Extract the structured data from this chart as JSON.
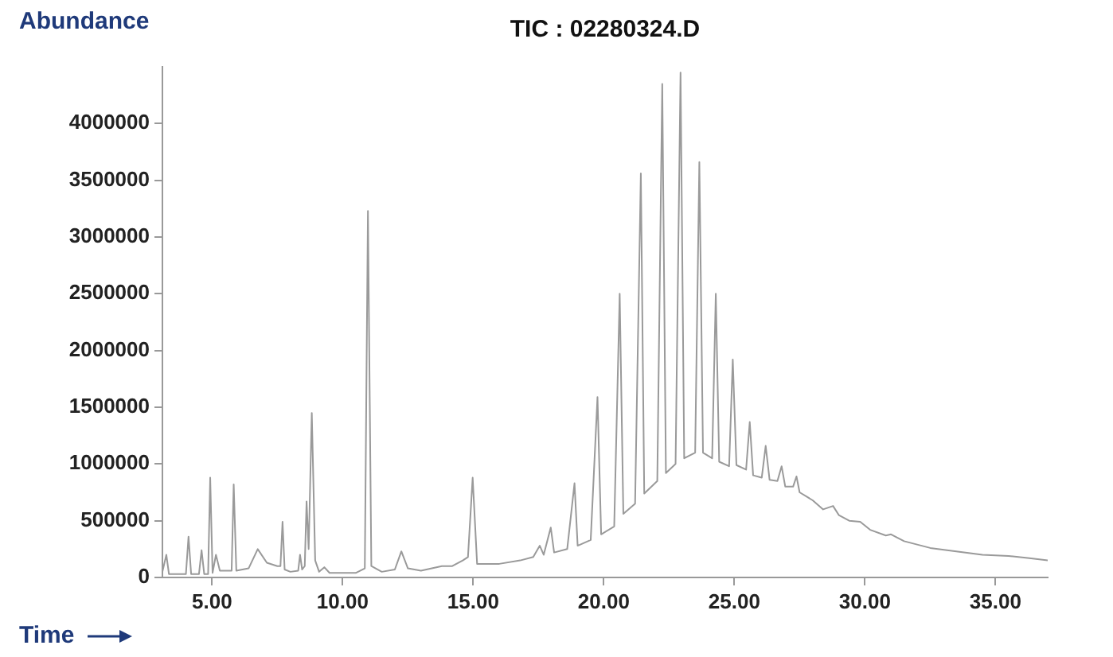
{
  "chart_data": {
    "type": "line",
    "title": "TIC : 02280324.D",
    "xlabel": "Time",
    "ylabel": "Abundance",
    "x": [
      3.1,
      3.25,
      3.35,
      4.0,
      4.1,
      4.2,
      4.5,
      4.6,
      4.7,
      4.85,
      4.93,
      5.02,
      5.15,
      5.3,
      5.75,
      5.83,
      5.93,
      6.4,
      6.75,
      7.1,
      7.5,
      7.62,
      7.7,
      7.78,
      8.0,
      8.3,
      8.37,
      8.45,
      8.55,
      8.62,
      8.7,
      8.82,
      8.95,
      9.1,
      9.3,
      9.5,
      10.5,
      10.85,
      10.97,
      11.1,
      11.5,
      12.0,
      12.25,
      12.5,
      13.0,
      13.8,
      14.2,
      14.6,
      14.8,
      14.98,
      15.15,
      16.0,
      16.8,
      17.3,
      17.55,
      17.7,
      17.97,
      18.1,
      18.6,
      18.88,
      19.0,
      19.5,
      19.76,
      19.9,
      20.4,
      20.61,
      20.75,
      21.2,
      21.42,
      21.55,
      22.05,
      22.24,
      22.38,
      22.75,
      22.94,
      23.08,
      23.5,
      23.66,
      23.8,
      24.15,
      24.29,
      24.42,
      24.8,
      24.94,
      25.08,
      25.45,
      25.59,
      25.72,
      26.05,
      26.2,
      26.35,
      26.65,
      26.81,
      26.95,
      27.25,
      27.38,
      27.5,
      28.0,
      28.4,
      28.78,
      29.0,
      29.4,
      29.82,
      30.2,
      30.8,
      31.0,
      31.5,
      32.5,
      33.5,
      34.5,
      35.5,
      36.3,
      37.0
    ],
    "series": [
      {
        "color": "#9a9a9a",
        "values": [
          50000,
          200000,
          30000,
          30000,
          360000,
          30000,
          30000,
          240000,
          30000,
          30000,
          880000,
          40000,
          200000,
          60000,
          60000,
          820000,
          60000,
          80000,
          250000,
          130000,
          100000,
          100000,
          490000,
          70000,
          50000,
          60000,
          200000,
          70000,
          100000,
          670000,
          250000,
          1450000,
          150000,
          50000,
          90000,
          40000,
          40000,
          80000,
          3230000,
          100000,
          50000,
          70000,
          230000,
          80000,
          60000,
          100000,
          100000,
          150000,
          180000,
          880000,
          120000,
          120000,
          150000,
          180000,
          280000,
          200000,
          440000,
          220000,
          250000,
          830000,
          280000,
          330000,
          1590000,
          380000,
          450000,
          2500000,
          560000,
          650000,
          3560000,
          740000,
          850000,
          4350000,
          920000,
          1000000,
          4450000,
          1050000,
          1100000,
          3660000,
          1100000,
          1050000,
          2500000,
          1020000,
          980000,
          1920000,
          990000,
          950000,
          1370000,
          900000,
          880000,
          1160000,
          860000,
          850000,
          980000,
          800000,
          800000,
          890000,
          750000,
          680000,
          600000,
          630000,
          550000,
          500000,
          490000,
          420000,
          370000,
          380000,
          320000,
          260000,
          230000,
          200000,
          190000,
          170000,
          150000
        ]
      }
    ],
    "xlim": [
      3.1,
      37.0
    ],
    "xticks": [
      {
        "value": 5,
        "label": "5.00"
      },
      {
        "value": 10,
        "label": "10.00"
      },
      {
        "value": 15,
        "label": "15.00"
      },
      {
        "value": 20,
        "label": "20.00"
      },
      {
        "value": 25,
        "label": "25.00"
      },
      {
        "value": 30,
        "label": "30.00"
      },
      {
        "value": 35,
        "label": "35.00"
      }
    ],
    "ylim": [
      0,
      4500000
    ],
    "yticks": [
      0,
      500000,
      1000000,
      1500000,
      2000000,
      2500000,
      3000000,
      3500000,
      4000000
    ],
    "grid": false,
    "legend": false
  }
}
